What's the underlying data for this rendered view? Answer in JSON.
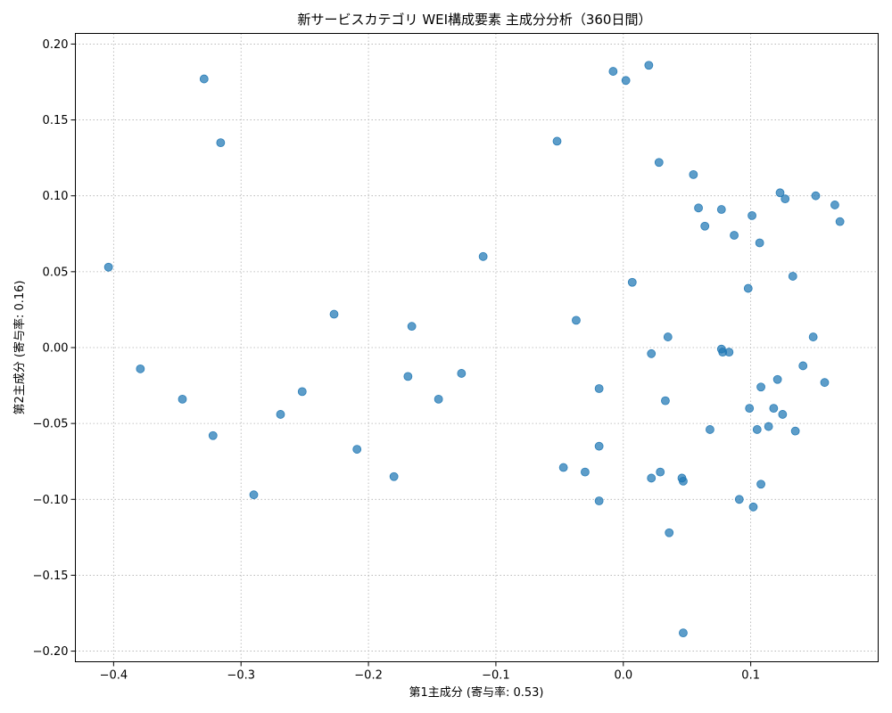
{
  "chart_data": {
    "type": "scatter",
    "title": "新サービスカテゴリ WEI構成要素 主成分分析（360日間）",
    "xlabel": "第1主成分 (寄与率: 0.53)",
    "ylabel": "第2主成分 (寄与率: 0.16)",
    "xlim": [
      -0.43,
      0.2
    ],
    "ylim": [
      -0.207,
      0.207
    ],
    "x_ticks": [
      -0.4,
      -0.3,
      -0.2,
      -0.1,
      0.0,
      0.1
    ],
    "x_tick_labels": [
      "−0.4",
      "−0.3",
      "−0.2",
      "−0.1",
      "0.0",
      "0.1"
    ],
    "y_ticks": [
      -0.2,
      -0.15,
      -0.1,
      -0.05,
      0.0,
      0.05,
      0.1,
      0.15,
      0.2
    ],
    "y_tick_labels": [
      "−0.20",
      "−0.15",
      "−0.10",
      "−0.05",
      "0.00",
      "0.05",
      "0.10",
      "0.15",
      "0.20"
    ],
    "grid": true,
    "color": "#1f77b4",
    "points": [
      {
        "x": -0.404,
        "y": 0.053
      },
      {
        "x": -0.379,
        "y": -0.014
      },
      {
        "x": -0.346,
        "y": -0.034
      },
      {
        "x": -0.329,
        "y": 0.177
      },
      {
        "x": -0.322,
        "y": -0.058
      },
      {
        "x": -0.316,
        "y": 0.135
      },
      {
        "x": -0.29,
        "y": -0.097
      },
      {
        "x": -0.269,
        "y": -0.044
      },
      {
        "x": -0.252,
        "y": -0.029
      },
      {
        "x": -0.227,
        "y": 0.022
      },
      {
        "x": -0.209,
        "y": -0.067
      },
      {
        "x": -0.18,
        "y": -0.085
      },
      {
        "x": -0.169,
        "y": -0.019
      },
      {
        "x": -0.166,
        "y": 0.014
      },
      {
        "x": -0.145,
        "y": -0.034
      },
      {
        "x": -0.127,
        "y": -0.017
      },
      {
        "x": -0.11,
        "y": 0.06
      },
      {
        "x": -0.052,
        "y": 0.136
      },
      {
        "x": -0.047,
        "y": -0.079
      },
      {
        "x": -0.037,
        "y": 0.018
      },
      {
        "x": -0.03,
        "y": -0.082
      },
      {
        "x": -0.019,
        "y": -0.027
      },
      {
        "x": -0.019,
        "y": -0.065
      },
      {
        "x": -0.019,
        "y": -0.101
      },
      {
        "x": -0.008,
        "y": 0.182
      },
      {
        "x": 0.002,
        "y": 0.176
      },
      {
        "x": 0.007,
        "y": 0.043
      },
      {
        "x": 0.02,
        "y": 0.186
      },
      {
        "x": 0.022,
        "y": -0.004
      },
      {
        "x": 0.022,
        "y": -0.086
      },
      {
        "x": 0.028,
        "y": 0.122
      },
      {
        "x": 0.029,
        "y": -0.082
      },
      {
        "x": 0.033,
        "y": -0.035
      },
      {
        "x": 0.035,
        "y": 0.007
      },
      {
        "x": 0.036,
        "y": -0.122
      },
      {
        "x": 0.046,
        "y": -0.086
      },
      {
        "x": 0.047,
        "y": -0.088
      },
      {
        "x": 0.047,
        "y": -0.188
      },
      {
        "x": 0.055,
        "y": 0.114
      },
      {
        "x": 0.059,
        "y": 0.092
      },
      {
        "x": 0.064,
        "y": 0.08
      },
      {
        "x": 0.068,
        "y": -0.054
      },
      {
        "x": 0.077,
        "y": 0.091
      },
      {
        "x": 0.077,
        "y": -0.001
      },
      {
        "x": 0.078,
        "y": -0.003
      },
      {
        "x": 0.083,
        "y": -0.003
      },
      {
        "x": 0.087,
        "y": 0.074
      },
      {
        "x": 0.091,
        "y": -0.1
      },
      {
        "x": 0.098,
        "y": 0.039
      },
      {
        "x": 0.099,
        "y": -0.04
      },
      {
        "x": 0.101,
        "y": 0.087
      },
      {
        "x": 0.102,
        "y": -0.105
      },
      {
        "x": 0.105,
        "y": -0.054
      },
      {
        "x": 0.107,
        "y": 0.069
      },
      {
        "x": 0.108,
        "y": -0.026
      },
      {
        "x": 0.108,
        "y": -0.09
      },
      {
        "x": 0.114,
        "y": -0.052
      },
      {
        "x": 0.118,
        "y": -0.04
      },
      {
        "x": 0.121,
        "y": -0.021
      },
      {
        "x": 0.123,
        "y": 0.102
      },
      {
        "x": 0.125,
        "y": -0.044
      },
      {
        "x": 0.127,
        "y": 0.098
      },
      {
        "x": 0.133,
        "y": 0.047
      },
      {
        "x": 0.135,
        "y": -0.055
      },
      {
        "x": 0.141,
        "y": -0.012
      },
      {
        "x": 0.149,
        "y": 0.007
      },
      {
        "x": 0.151,
        "y": 0.1
      },
      {
        "x": 0.158,
        "y": -0.023
      },
      {
        "x": 0.166,
        "y": 0.094
      },
      {
        "x": 0.17,
        "y": 0.083
      }
    ]
  }
}
